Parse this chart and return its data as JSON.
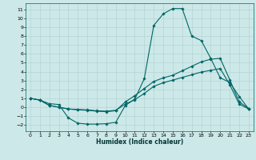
{
  "title": "",
  "xlabel": "Humidex (Indice chaleur)",
  "ylabel": "",
  "bg_color": "#cde8e8",
  "line_color": "#006666",
  "grid_color": "#b0d0d0",
  "xlim": [
    -0.5,
    23.5
  ],
  "ylim": [
    -2.7,
    11.7
  ],
  "xticks": [
    0,
    1,
    2,
    3,
    4,
    5,
    6,
    7,
    8,
    9,
    10,
    11,
    12,
    13,
    14,
    15,
    16,
    17,
    18,
    19,
    20,
    21,
    22,
    23
  ],
  "yticks": [
    -2,
    -1,
    0,
    1,
    2,
    3,
    4,
    5,
    6,
    7,
    8,
    9,
    10,
    11
  ],
  "line1_x": [
    0,
    1,
    2,
    3,
    4,
    5,
    6,
    7,
    8,
    9,
    10,
    11,
    12,
    13,
    14,
    15,
    16,
    17,
    18,
    19,
    20,
    21,
    22,
    23
  ],
  "line1_y": [
    1.0,
    0.8,
    0.4,
    0.3,
    -1.2,
    -1.8,
    -1.9,
    -1.9,
    -1.85,
    -1.7,
    0.2,
    0.9,
    3.2,
    9.2,
    10.5,
    11.1,
    11.1,
    8.0,
    7.5,
    5.5,
    3.3,
    2.8,
    1.2,
    -0.2
  ],
  "line2_x": [
    0,
    1,
    2,
    3,
    4,
    5,
    6,
    7,
    8,
    9,
    10,
    11,
    12,
    13,
    14,
    15,
    16,
    17,
    18,
    19,
    20,
    21,
    22,
    23
  ],
  "line2_y": [
    1.0,
    0.8,
    0.2,
    0.0,
    -0.2,
    -0.3,
    -0.35,
    -0.45,
    -0.5,
    -0.4,
    0.6,
    1.3,
    2.1,
    2.9,
    3.3,
    3.6,
    4.1,
    4.6,
    5.1,
    5.4,
    5.5,
    3.1,
    0.6,
    -0.15
  ],
  "line3_x": [
    0,
    1,
    2,
    3,
    4,
    5,
    6,
    7,
    8,
    9,
    10,
    11,
    12,
    13,
    14,
    15,
    16,
    17,
    18,
    19,
    20,
    21,
    22,
    23
  ],
  "line3_y": [
    1.0,
    0.8,
    0.2,
    0.0,
    -0.2,
    -0.25,
    -0.3,
    -0.4,
    -0.45,
    -0.35,
    0.35,
    0.85,
    1.55,
    2.35,
    2.75,
    3.05,
    3.35,
    3.65,
    3.95,
    4.15,
    4.35,
    2.55,
    0.35,
    -0.2
  ]
}
